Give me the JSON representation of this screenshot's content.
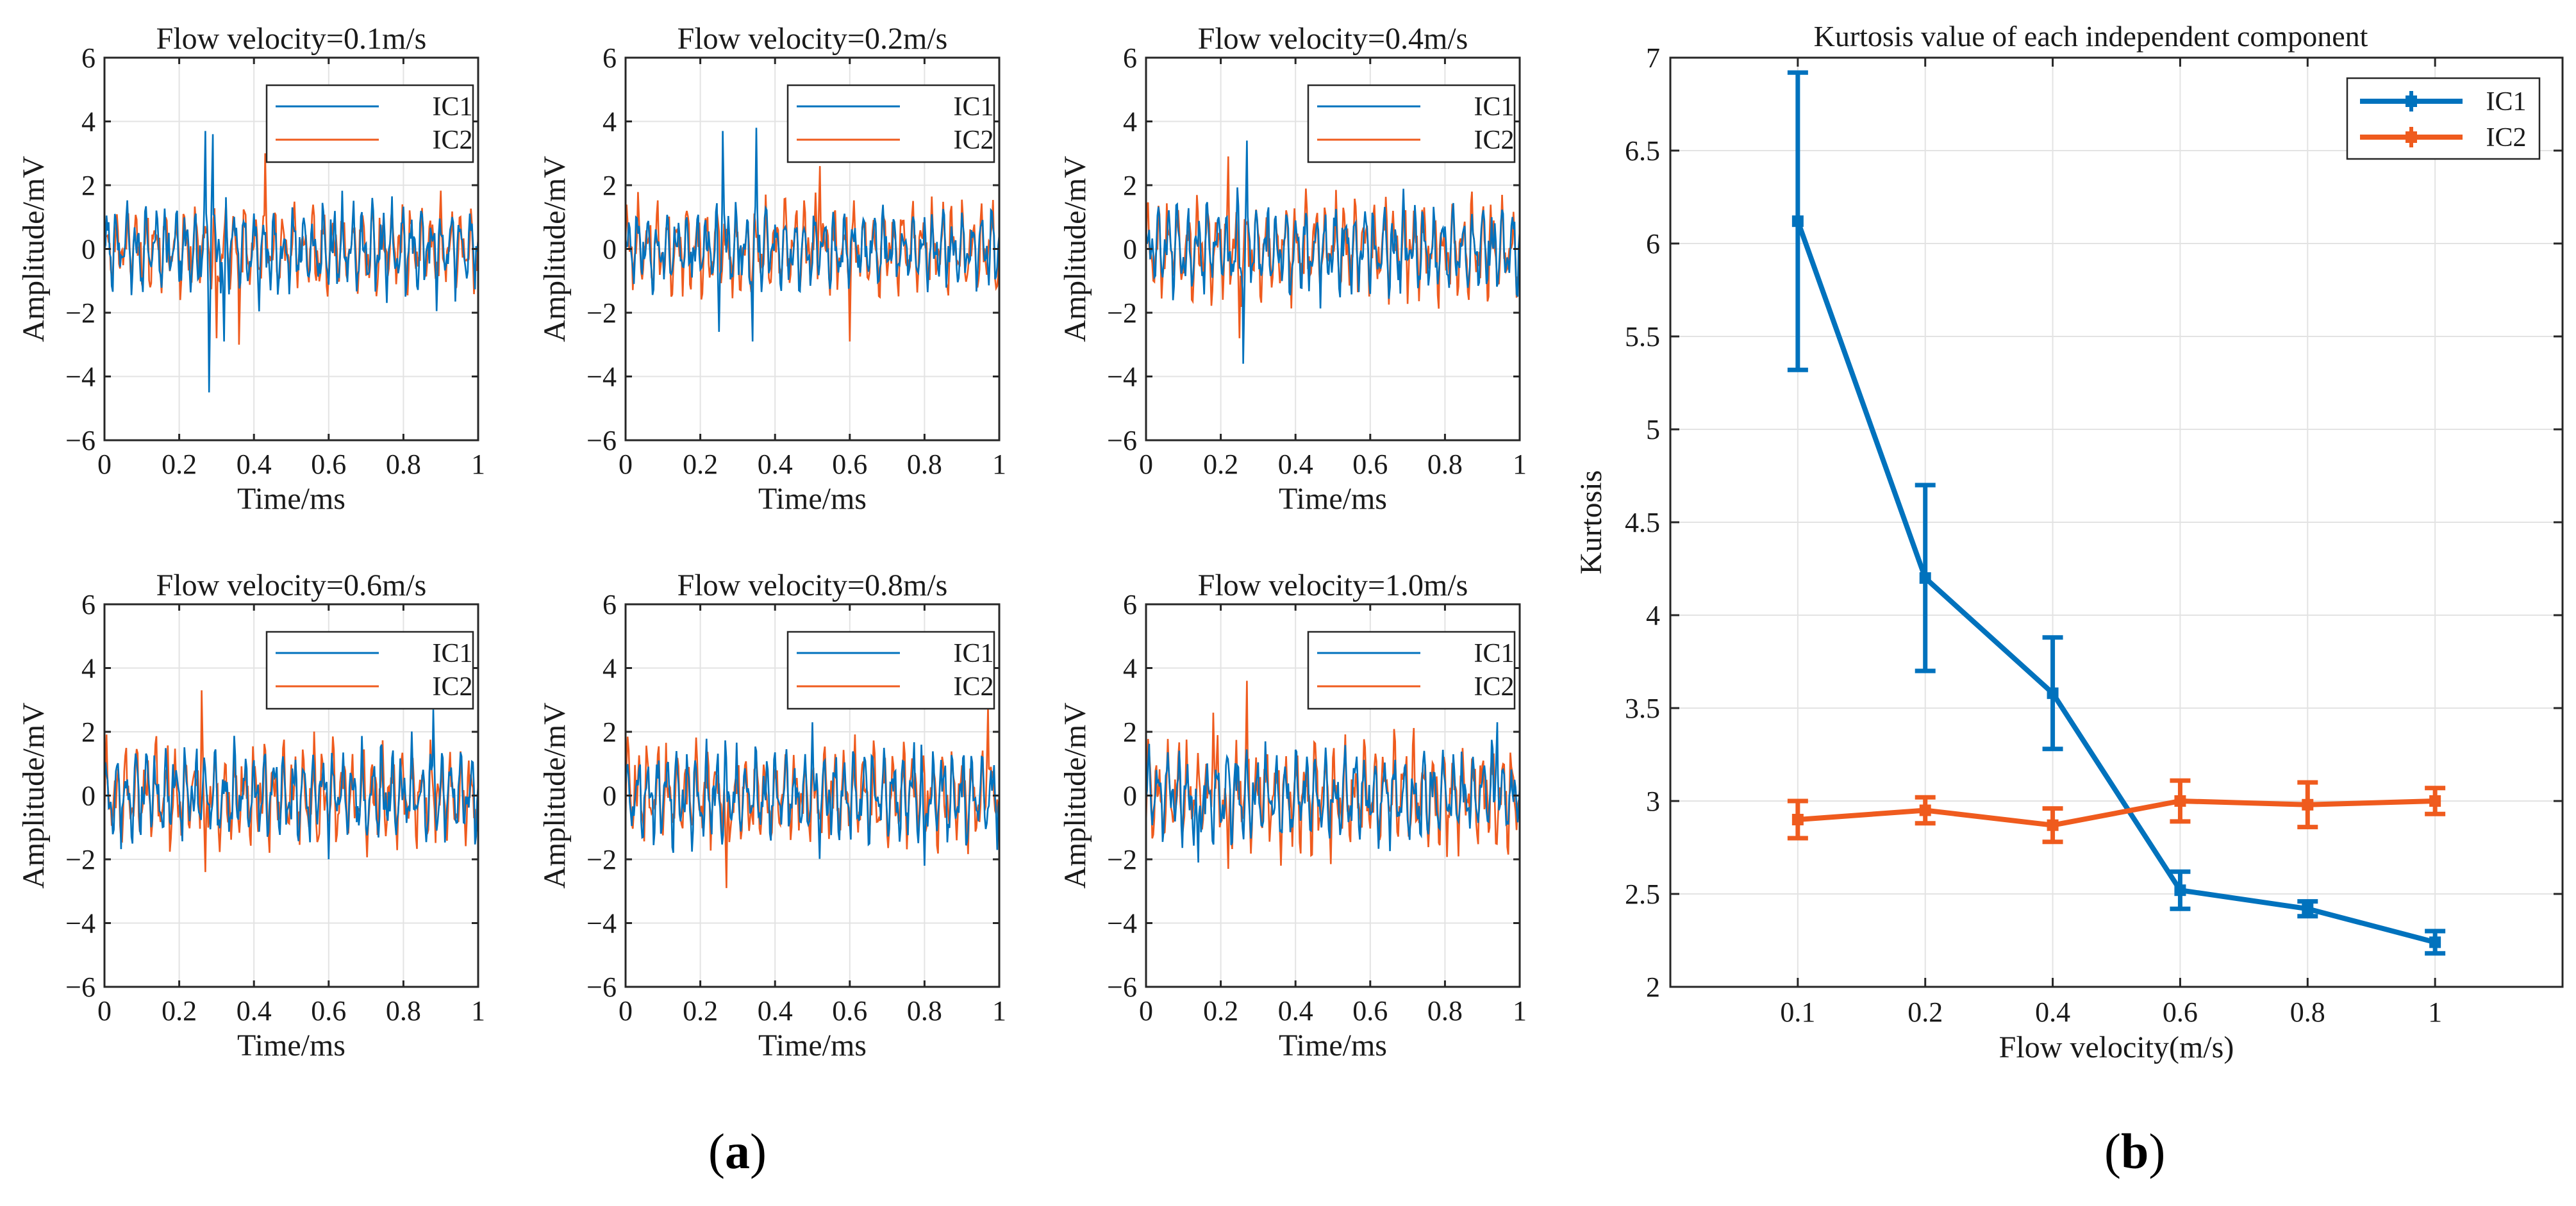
{
  "figure": {
    "panel_a_label": "a",
    "panel_b_label": "b",
    "colors": {
      "ic1": "#0072BD",
      "ic2": "#EF5B1E"
    }
  },
  "chart_data": [
    {
      "type": "line",
      "title": "Flow velocity=0.1m/s",
      "xlabel": "Time/ms",
      "ylabel": "Amplitude/mV",
      "xlim": [
        0,
        1
      ],
      "ylim": [
        -6,
        6
      ],
      "xticks": [
        "0",
        "0.2",
        "0.4",
        "0.6",
        "0.8",
        "1"
      ],
      "yticks": [
        "6",
        "4",
        "2",
        "0",
        "-2",
        "-4",
        "-6"
      ],
      "grid": true,
      "legend": "top-right",
      "series": [
        {
          "name": "IC1",
          "peaks": [
            [
              0.27,
              3.7
            ],
            [
              0.29,
              3.6
            ],
            [
              0.28,
              -4.5
            ],
            [
              0.32,
              -2.9
            ]
          ],
          "typical_range": [
            -1.8,
            2.3
          ]
        },
        {
          "name": "IC2",
          "peaks": [
            [
              0.43,
              3.0
            ],
            [
              0.3,
              -2.8
            ],
            [
              0.36,
              -3.0
            ]
          ],
          "typical_range": [
            -1.8,
            2.2
          ]
        }
      ]
    },
    {
      "type": "line",
      "title": "Flow velocity=0.2m/s",
      "xlabel": "Time/ms",
      "ylabel": "Amplitude/mV",
      "xlim": [
        0,
        1
      ],
      "ylim": [
        -6,
        6
      ],
      "xticks": [
        "0",
        "0.2",
        "0.4",
        "0.6",
        "0.8",
        "1"
      ],
      "yticks": [
        "6",
        "4",
        "2",
        "0",
        "-2",
        "-4",
        "-6"
      ],
      "grid": true,
      "legend": "top-right",
      "series": [
        {
          "name": "IC1",
          "peaks": [
            [
              0.26,
              3.7
            ],
            [
              0.35,
              3.8
            ],
            [
              0.25,
              -2.6
            ],
            [
              0.34,
              -2.9
            ]
          ],
          "typical_range": [
            -1.8,
            1.8
          ]
        },
        {
          "name": "IC2",
          "peaks": [
            [
              0.52,
              2.6
            ],
            [
              0.6,
              -2.9
            ]
          ],
          "typical_range": [
            -1.8,
            2.4
          ]
        }
      ]
    },
    {
      "type": "line",
      "title": "Flow velocity=0.4m/s",
      "xlabel": "Time/ms",
      "ylabel": "Amplitude/mV",
      "xlim": [
        0,
        1
      ],
      "ylim": [
        -6,
        6
      ],
      "xticks": [
        "0",
        "0.2",
        "0.4",
        "0.6",
        "0.8",
        "1"
      ],
      "yticks": [
        "6",
        "4",
        "2",
        "0",
        "-2",
        "-4",
        "-6"
      ],
      "grid": true,
      "legend": "top-right",
      "series": [
        {
          "name": "IC1",
          "peaks": [
            [
              0.27,
              3.4
            ],
            [
              0.26,
              -3.6
            ]
          ],
          "typical_range": [
            -2.0,
            2.2
          ]
        },
        {
          "name": "IC2",
          "peaks": [
            [
              0.22,
              2.9
            ],
            [
              0.25,
              -2.8
            ]
          ],
          "typical_range": [
            -2.2,
            2.4
          ]
        }
      ]
    },
    {
      "type": "line",
      "title": "Flow velocity=0.6m/s",
      "xlabel": "Time/ms",
      "ylabel": "Amplitude/mV",
      "xlim": [
        0,
        1
      ],
      "ylim": [
        -6,
        6
      ],
      "xticks": [
        "0",
        "0.2",
        "0.4",
        "0.6",
        "0.8",
        "1"
      ],
      "yticks": [
        "6",
        "4",
        "2",
        "0",
        "-2",
        "-4",
        "-6"
      ],
      "grid": true,
      "legend": "top-right",
      "series": [
        {
          "name": "IC1",
          "peaks": [
            [
              0.88,
              2.7
            ],
            [
              0.6,
              -2.0
            ]
          ],
          "typical_range": [
            -1.8,
            2.4
          ]
        },
        {
          "name": "IC2",
          "peaks": [
            [
              0.26,
              3.3
            ],
            [
              0.27,
              -2.4
            ]
          ],
          "typical_range": [
            -2.0,
            2.6
          ]
        }
      ]
    },
    {
      "type": "line",
      "title": "Flow velocity=0.8m/s",
      "xlabel": "Time/ms",
      "ylabel": "Amplitude/mV",
      "xlim": [
        0,
        1
      ],
      "ylim": [
        -6,
        6
      ],
      "xticks": [
        "0",
        "0.2",
        "0.4",
        "0.6",
        "0.8",
        "1"
      ],
      "yticks": [
        "6",
        "4",
        "2",
        "0",
        "-2",
        "-4",
        "-6"
      ],
      "grid": true,
      "legend": "top-right",
      "series": [
        {
          "name": "IC1",
          "peaks": [
            [
              0.5,
              2.3
            ],
            [
              0.8,
              -2.2
            ]
          ],
          "typical_range": [
            -2.0,
            2.2
          ]
        },
        {
          "name": "IC2",
          "peaks": [
            [
              0.97,
              2.8
            ],
            [
              0.27,
              -2.9
            ]
          ],
          "typical_range": [
            -2.0,
            2.4
          ]
        }
      ]
    },
    {
      "type": "line",
      "title": "Flow velocity=1.0m/s",
      "xlabel": "Time/ms",
      "ylabel": "Amplitude/mV",
      "xlim": [
        0,
        1
      ],
      "ylim": [
        -6,
        6
      ],
      "xticks": [
        "0",
        "0.2",
        "0.4",
        "0.6",
        "0.8",
        "1"
      ],
      "yticks": [
        "6",
        "4",
        "2",
        "0",
        "-2",
        "-4",
        "-6"
      ],
      "grid": true,
      "legend": "top-right",
      "series": [
        {
          "name": "IC1",
          "peaks": [
            [
              0.94,
              2.3
            ],
            [
              0.14,
              -2.1
            ]
          ],
          "typical_range": [
            -2.0,
            2.2
          ]
        },
        {
          "name": "IC2",
          "peaks": [
            [
              0.27,
              3.6
            ],
            [
              0.18,
              2.6
            ],
            [
              0.22,
              -2.3
            ]
          ],
          "typical_range": [
            -2.2,
            2.6
          ]
        }
      ]
    },
    {
      "type": "line",
      "title": "Kurtosis value of each independent component",
      "xlabel": "Flow velocity(m/s)",
      "ylabel": "Kurtosis",
      "categories": [
        "0.1",
        "0.2",
        "0.4",
        "0.6",
        "0.8",
        "1"
      ],
      "ylim": [
        2,
        7
      ],
      "yticks": [
        "7",
        "6.5",
        "6",
        "5.5",
        "5",
        "4.5",
        "4",
        "3.5",
        "3",
        "2.5",
        "2"
      ],
      "grid": true,
      "legend": "top-right",
      "series": [
        {
          "name": "IC1",
          "values": [
            6.12,
            4.2,
            3.58,
            2.52,
            2.42,
            2.24
          ],
          "errors": [
            0.8,
            0.5,
            0.3,
            0.1,
            0.04,
            0.06
          ]
        },
        {
          "name": "IC2",
          "values": [
            2.9,
            2.95,
            2.87,
            3.0,
            2.98,
            3.0
          ],
          "errors": [
            0.1,
            0.07,
            0.09,
            0.11,
            0.12,
            0.07
          ]
        }
      ]
    }
  ]
}
